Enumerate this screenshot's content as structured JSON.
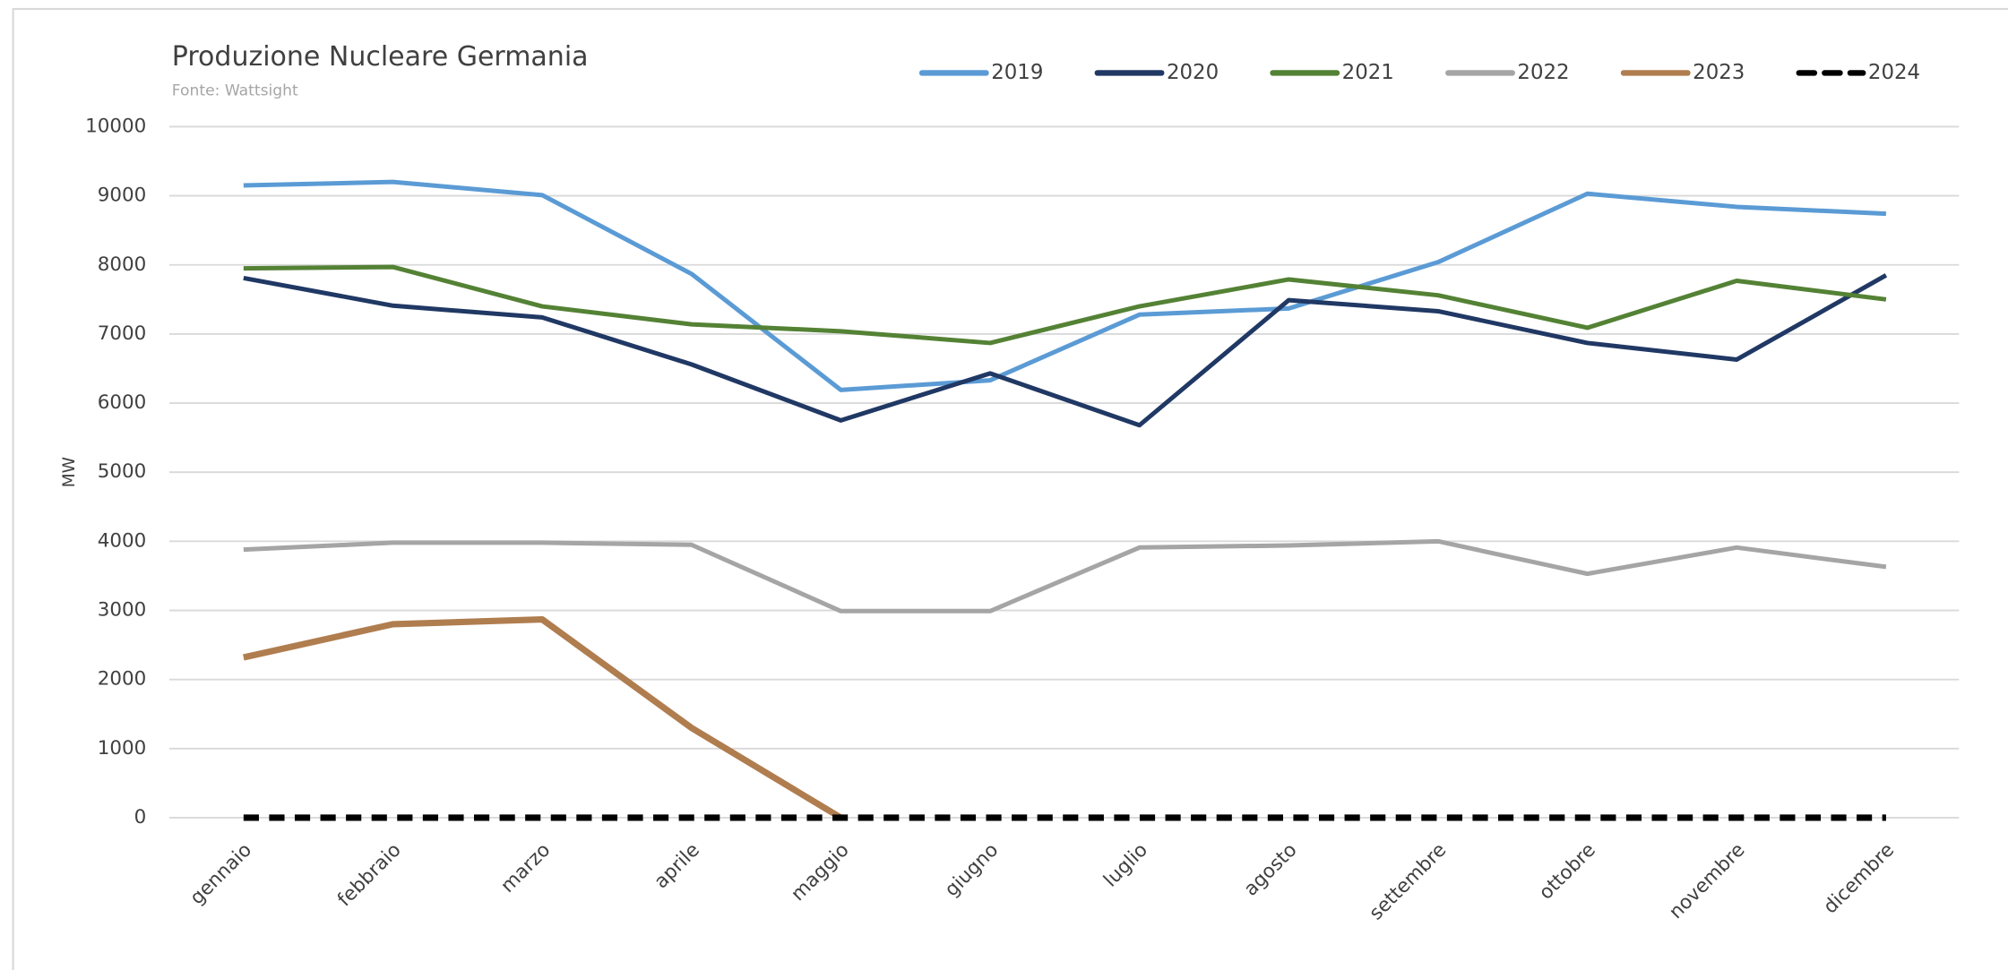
{
  "chart_data": {
    "type": "line",
    "title": "Produzione Nucleare Germania",
    "subtitle": "Fonte: Wattsight",
    "y_label": "MW",
    "categories": [
      "gennaio",
      "febbraio",
      "marzo",
      "aprile",
      "maggio",
      "giugno",
      "luglio",
      "agosto",
      "settembre",
      "ottobre",
      "novembre",
      "dicembre"
    ],
    "series": [
      {
        "name": "2019",
        "color": "#5b9bd5",
        "values": [
          9150,
          9200,
          9010,
          7870,
          6190,
          6330,
          7280,
          7370,
          8040,
          9030,
          8840,
          8740
        ]
      },
      {
        "name": "2020",
        "color": "#203864",
        "values": [
          7810,
          7410,
          7240,
          6560,
          5750,
          6430,
          5680,
          7490,
          7330,
          6870,
          6630,
          7850
        ]
      },
      {
        "name": "2021",
        "color": "#548235",
        "values": [
          7950,
          7970,
          7400,
          7140,
          7040,
          6870,
          7400,
          7790,
          7560,
          7090,
          7770,
          7500
        ]
      },
      {
        "name": "2022",
        "color": "#a5a5a5",
        "values": [
          3880,
          3980,
          3980,
          3950,
          2990,
          2990,
          3910,
          3940,
          4000,
          3530,
          3910,
          3630
        ]
      },
      {
        "name": "2023",
        "color": "#b07d4f",
        "values": [
          2320,
          2800,
          2870,
          1300,
          0,
          null,
          null,
          null,
          null,
          null,
          null,
          null
        ]
      },
      {
        "name": "2024",
        "color": "#000000",
        "dashed": true,
        "values": [
          0,
          0,
          0,
          0,
          0,
          0,
          0,
          0,
          0,
          0,
          0,
          0
        ]
      }
    ],
    "ylim": [
      0,
      10000
    ],
    "yticks": [
      0,
      1000,
      2000,
      3000,
      4000,
      5000,
      6000,
      7000,
      8000,
      9000,
      10000
    ],
    "grid": true,
    "legend": "top-right"
  }
}
